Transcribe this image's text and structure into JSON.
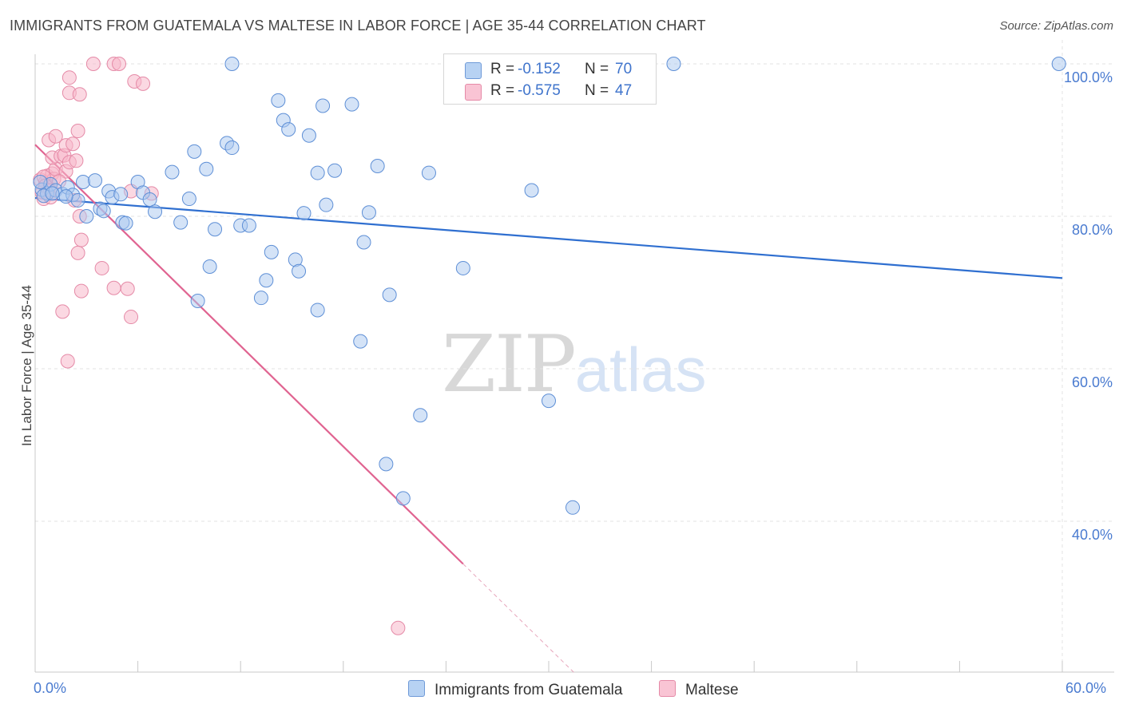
{
  "title": "IMMIGRANTS FROM GUATEMALA VS MALTESE IN LABOR FORCE | AGE 35-44 CORRELATION CHART",
  "source": "Source: ZipAtlas.com",
  "watermark": {
    "zip": "ZIP",
    "atlas": "atlas"
  },
  "legend": {
    "r_label": "R =",
    "n_label": "N =",
    "rows": [
      {
        "r": "-0.152",
        "n": "70"
      },
      {
        "r": "-0.575",
        "n": "47"
      }
    ]
  },
  "colors": {
    "blue_fill": "#a9c8f0",
    "blue_stroke": "#5e8fd6",
    "blue_line": "#2f6fd0",
    "pink_fill": "#f7b8cb",
    "pink_stroke": "#e58aa7",
    "pink_line": "#e06491",
    "grid": "#e3e3e3",
    "tick_text": "#4a7bd0"
  },
  "chart_data": {
    "type": "scatter",
    "title": "IMMIGRANTS FROM GUATEMALA VS MALTESE IN LABOR FORCE | AGE 35-44 CORRELATION CHART",
    "xlabel": "",
    "ylabel": "In Labor Force | Age 35-44",
    "xlim": [
      0,
      60
    ],
    "ylim": [
      22,
      102
    ],
    "x_ticks": [
      "0.0%",
      "60.0%"
    ],
    "y_ticks": [
      {
        "value": 100,
        "label": "100.0%"
      },
      {
        "value": 80,
        "label": "80.0%"
      },
      {
        "value": 60,
        "label": "60.0%"
      },
      {
        "value": 40,
        "label": "40.0%"
      }
    ],
    "grid": true,
    "legend_position": "top-center",
    "series": [
      {
        "name": "Immigrants from Guatemala",
        "r": -0.152,
        "n": 70,
        "trend": {
          "x": [
            0,
            60
          ],
          "y": [
            82.4,
            71.9
          ]
        },
        "points": [
          [
            0.4,
            83.5
          ],
          [
            0.7,
            83.0
          ],
          [
            0.9,
            84.2
          ],
          [
            1.2,
            83.4
          ],
          [
            1.6,
            82.9
          ],
          [
            1.9,
            83.8
          ],
          [
            2.2,
            82.8
          ],
          [
            2.5,
            82.1
          ],
          [
            2.8,
            84.5
          ],
          [
            3.0,
            80.0
          ],
          [
            3.5,
            84.7
          ],
          [
            3.8,
            81.0
          ],
          [
            4.0,
            80.7
          ],
          [
            4.3,
            83.3
          ],
          [
            4.5,
            82.5
          ],
          [
            5.0,
            82.9
          ],
          [
            5.1,
            79.2
          ],
          [
            5.3,
            79.1
          ],
          [
            6.0,
            84.5
          ],
          [
            6.3,
            83.1
          ],
          [
            6.7,
            82.2
          ],
          [
            7.0,
            80.6
          ],
          [
            8.0,
            85.8
          ],
          [
            8.5,
            79.2
          ],
          [
            9.0,
            82.3
          ],
          [
            9.3,
            88.5
          ],
          [
            9.5,
            68.9
          ],
          [
            10.0,
            86.2
          ],
          [
            10.2,
            73.4
          ],
          [
            10.5,
            78.3
          ],
          [
            11.2,
            89.6
          ],
          [
            11.5,
            89.0
          ],
          [
            11.5,
            100.0
          ],
          [
            12.0,
            78.8
          ],
          [
            12.5,
            78.8
          ],
          [
            13.2,
            69.3
          ],
          [
            13.5,
            71.6
          ],
          [
            13.8,
            75.3
          ],
          [
            14.2,
            95.2
          ],
          [
            14.5,
            92.6
          ],
          [
            14.8,
            91.4
          ],
          [
            15.2,
            74.3
          ],
          [
            15.4,
            72.8
          ],
          [
            15.7,
            80.4
          ],
          [
            16.0,
            90.6
          ],
          [
            16.5,
            85.7
          ],
          [
            16.5,
            67.7
          ],
          [
            16.8,
            94.5
          ],
          [
            17.0,
            81.5
          ],
          [
            17.5,
            86.0
          ],
          [
            18.5,
            94.7
          ],
          [
            19.0,
            63.6
          ],
          [
            19.2,
            76.6
          ],
          [
            19.5,
            80.5
          ],
          [
            20.0,
            86.6
          ],
          [
            20.5,
            47.5
          ],
          [
            20.7,
            69.7
          ],
          [
            21.5,
            43.0
          ],
          [
            22.5,
            53.9
          ],
          [
            23.0,
            85.7
          ],
          [
            25.0,
            73.2
          ],
          [
            29.0,
            83.4
          ],
          [
            30.0,
            55.8
          ],
          [
            31.4,
            41.8
          ],
          [
            37.3,
            100.0
          ],
          [
            59.8,
            100.0
          ],
          [
            0.3,
            84.5
          ],
          [
            0.5,
            82.7
          ],
          [
            1.0,
            83.0
          ],
          [
            1.8,
            82.6
          ]
        ]
      },
      {
        "name": "Maltese",
        "r": -0.575,
        "n": 47,
        "trend": {
          "x": [
            0,
            25
          ],
          "y": [
            89.4,
            34.4
          ]
        },
        "trend_dashed": {
          "x": [
            25,
            31.5
          ],
          "y": [
            34.4,
            20.1
          ]
        },
        "points": [
          [
            0.3,
            84.8
          ],
          [
            0.4,
            83.1
          ],
          [
            0.5,
            82.3
          ],
          [
            0.6,
            84.5
          ],
          [
            0.7,
            85.3
          ],
          [
            0.8,
            83.8
          ],
          [
            0.9,
            82.5
          ],
          [
            1.0,
            85.6
          ],
          [
            1.1,
            84.9
          ],
          [
            1.2,
            86.2
          ],
          [
            0.5,
            85.2
          ],
          [
            0.8,
            90.0
          ],
          [
            1.0,
            87.7
          ],
          [
            1.2,
            90.5
          ],
          [
            1.5,
            87.9
          ],
          [
            1.7,
            88.0
          ],
          [
            1.8,
            89.3
          ],
          [
            1.8,
            85.9
          ],
          [
            2.0,
            87.1
          ],
          [
            2.2,
            89.5
          ],
          [
            2.4,
            87.3
          ],
          [
            2.5,
            91.2
          ],
          [
            2.3,
            82.1
          ],
          [
            2.6,
            80.0
          ],
          [
            2.7,
            76.9
          ],
          [
            2.5,
            75.2
          ],
          [
            2.7,
            70.2
          ],
          [
            2.0,
            96.2
          ],
          [
            2.6,
            96.0
          ],
          [
            2.0,
            98.2
          ],
          [
            3.4,
            100.0
          ],
          [
            4.6,
            100.0
          ],
          [
            4.9,
            100.0
          ],
          [
            5.8,
            97.7
          ],
          [
            6.3,
            97.4
          ],
          [
            3.9,
            73.2
          ],
          [
            4.6,
            70.6
          ],
          [
            5.4,
            70.5
          ],
          [
            5.6,
            66.8
          ],
          [
            1.6,
            67.5
          ],
          [
            1.9,
            61.0
          ],
          [
            5.6,
            83.3
          ],
          [
            6.8,
            83.0
          ],
          [
            0.6,
            84.0
          ],
          [
            0.9,
            83.4
          ],
          [
            1.4,
            84.6
          ],
          [
            21.2,
            26.0
          ]
        ]
      }
    ]
  },
  "bottom_legend": [
    "Immigrants from Guatemala",
    "Maltese"
  ]
}
